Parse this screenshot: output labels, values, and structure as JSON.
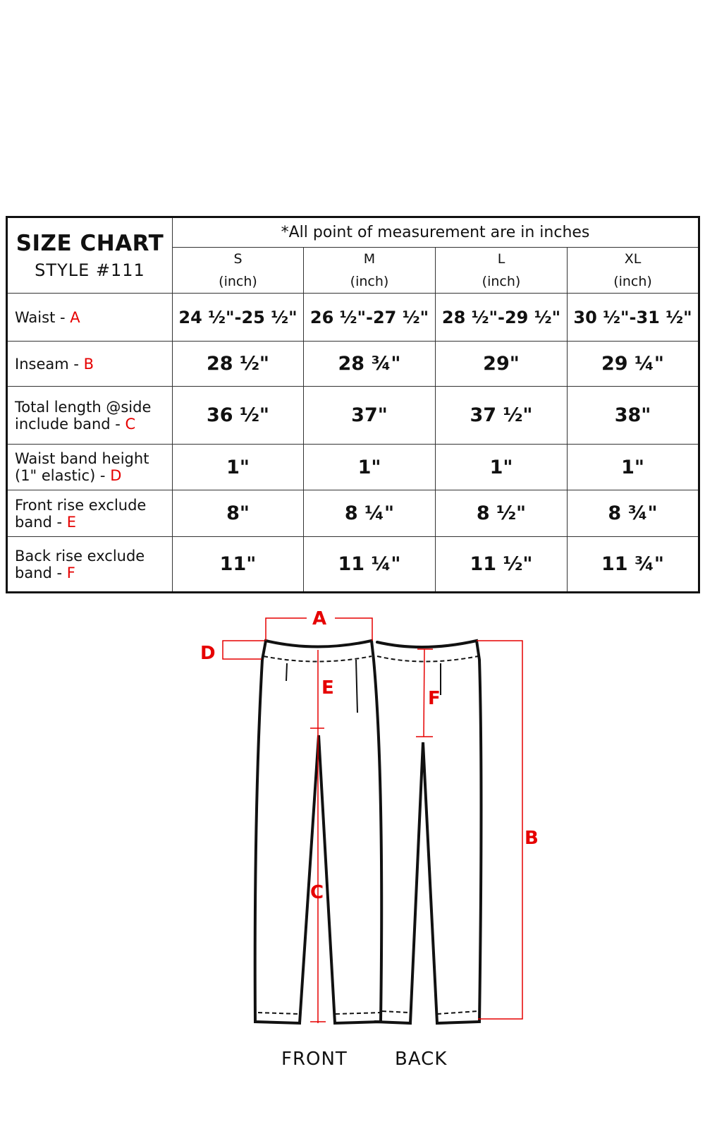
{
  "header": {
    "title": "SIZE CHART",
    "style": "STYLE #111",
    "note": "*All point of measurement are in inches"
  },
  "sizes": [
    {
      "name": "S",
      "unit": "(inch)"
    },
    {
      "name": "M",
      "unit": "(inch)"
    },
    {
      "name": "L",
      "unit": "(inch)"
    },
    {
      "name": "XL",
      "unit": "(inch)"
    }
  ],
  "rows": [
    {
      "label": "Waist - ",
      "code": "A",
      "values": [
        "24 ½\"-25 ½\"",
        "26 ½\"-27 ½\"",
        "28 ½\"-29 ½\"",
        "30 ½\"-31 ½\""
      ]
    },
    {
      "label": "Inseam - ",
      "code": "B",
      "values": [
        "28 ½\"",
        "28 ¾\"",
        "29\"",
        "29 ¼\""
      ]
    },
    {
      "label": "Total length @side include band - ",
      "code": "C",
      "values": [
        "36 ½\"",
        "37\"",
        "37 ½\"",
        "38\""
      ]
    },
    {
      "label": "Waist band height (1\" elastic) - ",
      "code": "D",
      "values": [
        "1\"",
        "1\"",
        "1\"",
        "1\""
      ]
    },
    {
      "label": "Front rise exclude band - ",
      "code": "E",
      "values": [
        "8\"",
        "8 ¼\"",
        "8 ½\"",
        "8 ¾\""
      ]
    },
    {
      "label": "Back rise exclude band - ",
      "code": "F",
      "values": [
        "11\"",
        "11 ¼\"",
        "11 ½\"",
        "11 ¾\""
      ]
    }
  ],
  "diagram": {
    "markers": {
      "a": "A",
      "b": "B",
      "c": "C",
      "d": "D",
      "e": "E",
      "f": "F"
    },
    "front_label": "FRONT",
    "back_label": "BACK",
    "marker_color": "#e60000"
  }
}
